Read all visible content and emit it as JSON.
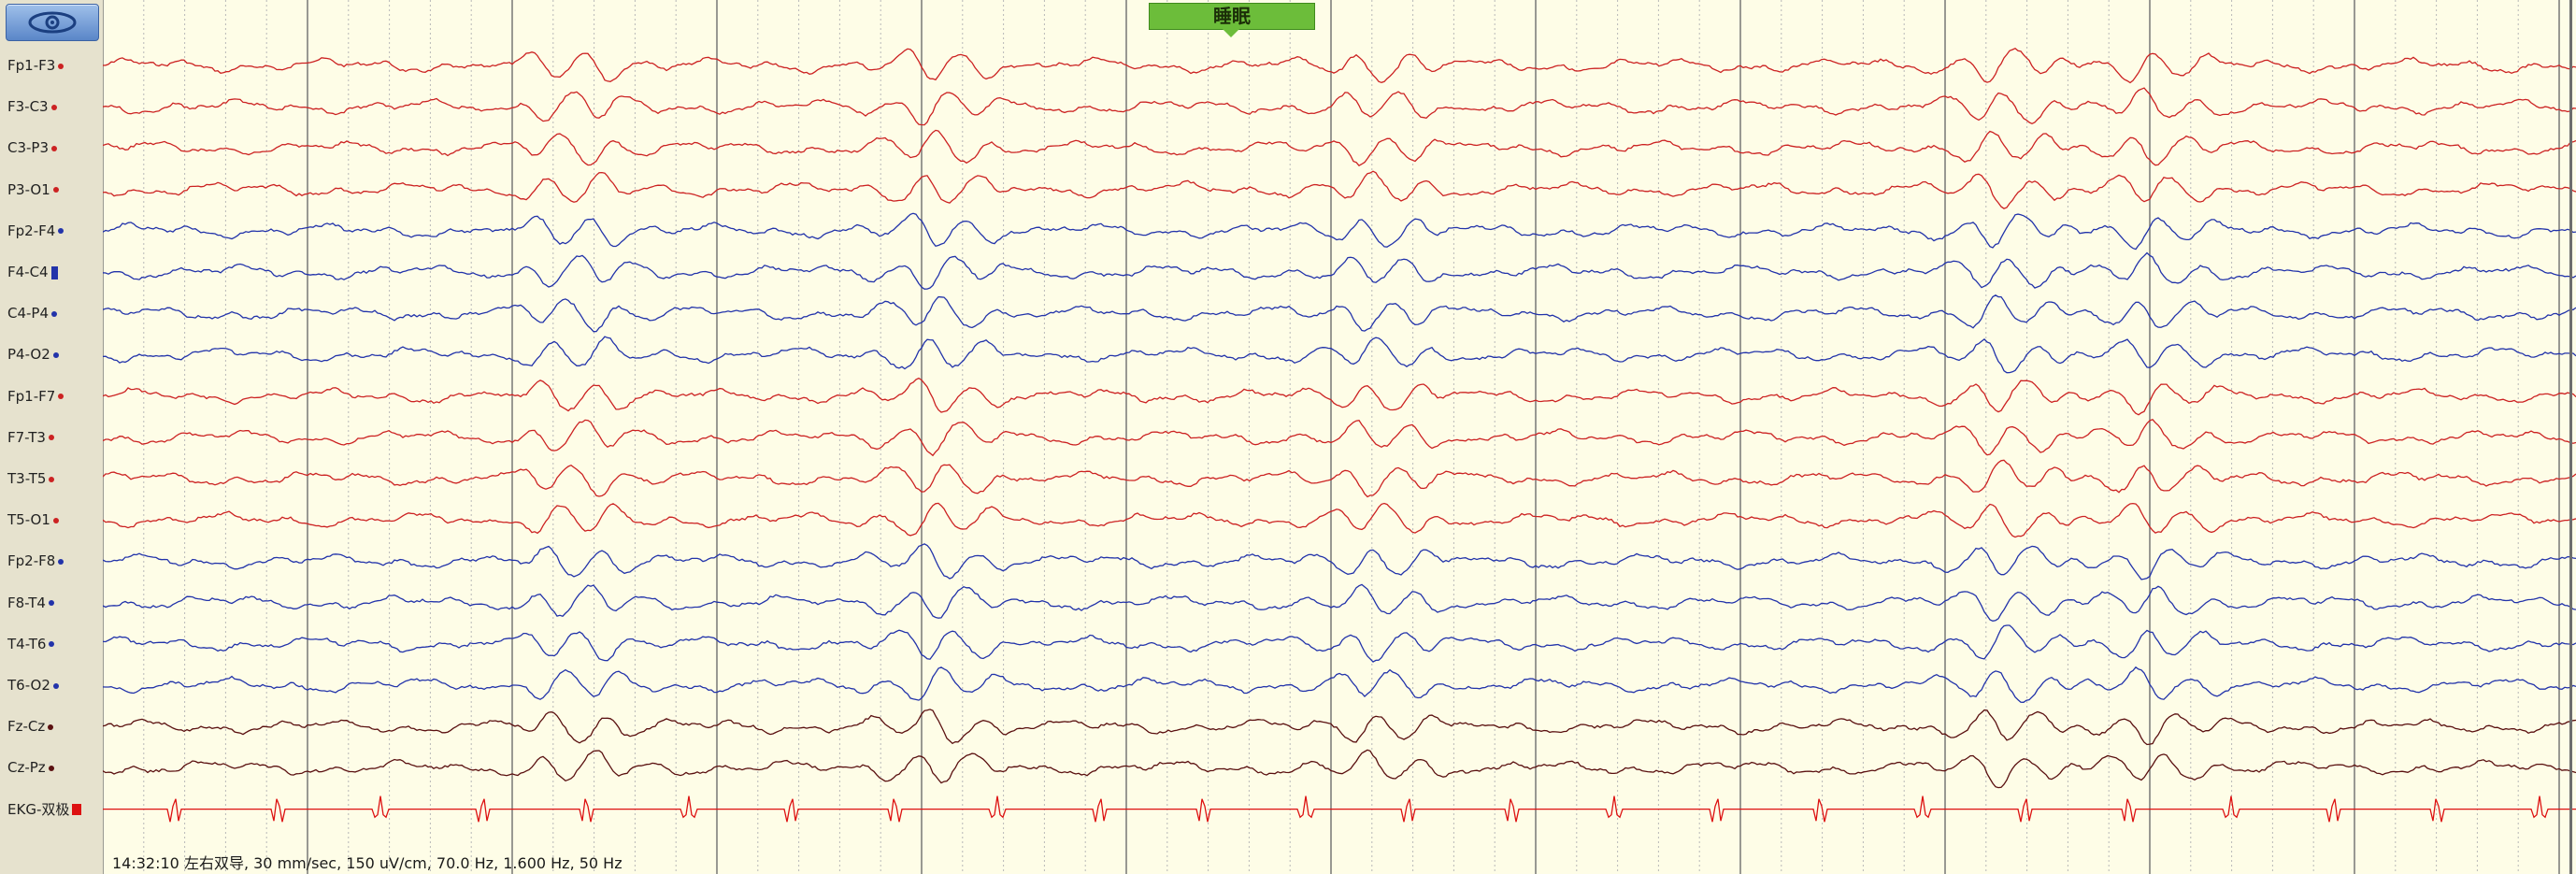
{
  "toolbar": {
    "view_icon": "eye-icon"
  },
  "marker": {
    "label": "睡眠"
  },
  "status": {
    "text": "14:32:10 左右双导, 30 mm/sec, 150 uV/cm, 70.0 Hz, 1.600 Hz, 50 Hz"
  },
  "channels": [
    {
      "label": "Fp1-F3",
      "color": "#cc2222",
      "marker": "dot"
    },
    {
      "label": "F3-C3",
      "color": "#cc2222",
      "marker": "dot"
    },
    {
      "label": "C3-P3",
      "color": "#cc2222",
      "marker": "dot"
    },
    {
      "label": "P3-O1",
      "color": "#cc2222",
      "marker": "dot"
    },
    {
      "label": "Fp2-F4",
      "color": "#2233aa",
      "marker": "dot"
    },
    {
      "label": "F4-C4",
      "color": "#2233aa",
      "marker": "bar"
    },
    {
      "label": "C4-P4",
      "color": "#2233aa",
      "marker": "dot"
    },
    {
      "label": "P4-O2",
      "color": "#2233aa",
      "marker": "dot"
    },
    {
      "label": "Fp1-F7",
      "color": "#cc2222",
      "marker": "dot"
    },
    {
      "label": "F7-T3",
      "color": "#cc2222",
      "marker": "dot"
    },
    {
      "label": "T3-T5",
      "color": "#cc2222",
      "marker": "dot"
    },
    {
      "label": "T5-O1",
      "color": "#cc2222",
      "marker": "dot"
    },
    {
      "label": "Fp2-F8",
      "color": "#2233aa",
      "marker": "dot"
    },
    {
      "label": "F8-T4",
      "color": "#2233aa",
      "marker": "dot"
    },
    {
      "label": "T4-T6",
      "color": "#2233aa",
      "marker": "dot"
    },
    {
      "label": "T6-O2",
      "color": "#2233aa",
      "marker": "dot"
    },
    {
      "label": "Fz-Cz",
      "color": "#5a1010",
      "marker": "dot"
    },
    {
      "label": "Cz-Pz",
      "color": "#5a1010",
      "marker": "dot"
    },
    {
      "label": "EKG-双极",
      "color": "#dd1111",
      "marker": "square"
    }
  ]
}
